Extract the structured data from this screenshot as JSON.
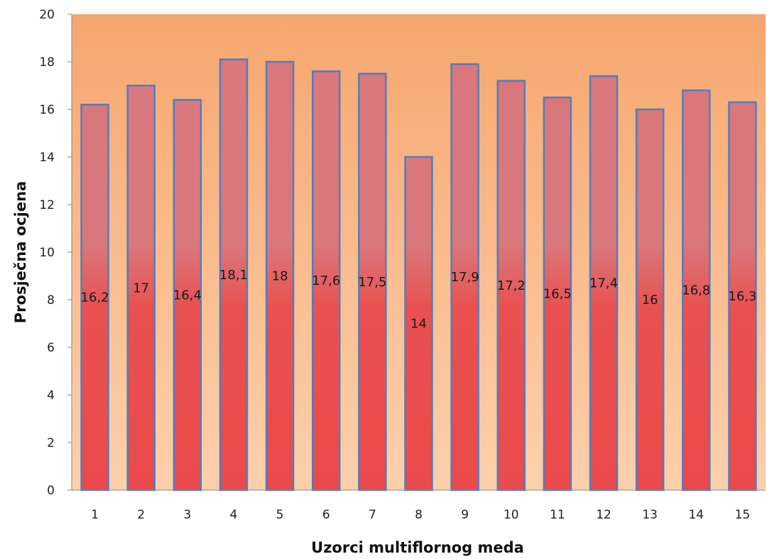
{
  "chart_data": {
    "type": "bar",
    "xlabel": "Uzorci multiflornog meda",
    "ylabel": "Prosječna ocjena",
    "categories": [
      "1",
      "2",
      "3",
      "4",
      "5",
      "6",
      "7",
      "8",
      "9",
      "10",
      "11",
      "12",
      "13",
      "14",
      "15"
    ],
    "values": [
      16.2,
      17,
      16.4,
      18.1,
      18,
      17.6,
      17.5,
      14,
      17.9,
      17.2,
      16.5,
      17.4,
      16,
      16.8,
      16.3
    ],
    "data_labels": [
      "16,2",
      "17",
      "16,4",
      "18,1",
      "18",
      "17,6",
      "17,5",
      "14",
      "17,9",
      "17,2",
      "16,5",
      "17,4",
      "16",
      "16,8",
      "16,3"
    ],
    "ylim": [
      0,
      20
    ],
    "yticks": [
      "0",
      "2",
      "4",
      "6",
      "8",
      "10",
      "12",
      "14",
      "16",
      "18",
      "20"
    ],
    "grid": false,
    "legend": "none",
    "colors": {
      "plot_background_top": "#f6a66e",
      "plot_background_bottom": "#fcd0ac",
      "bar_top": "#d9787c",
      "bar_bottom": "#ea4a4b",
      "bar_border": "#4f7ec0",
      "axis": "#888888"
    }
  }
}
